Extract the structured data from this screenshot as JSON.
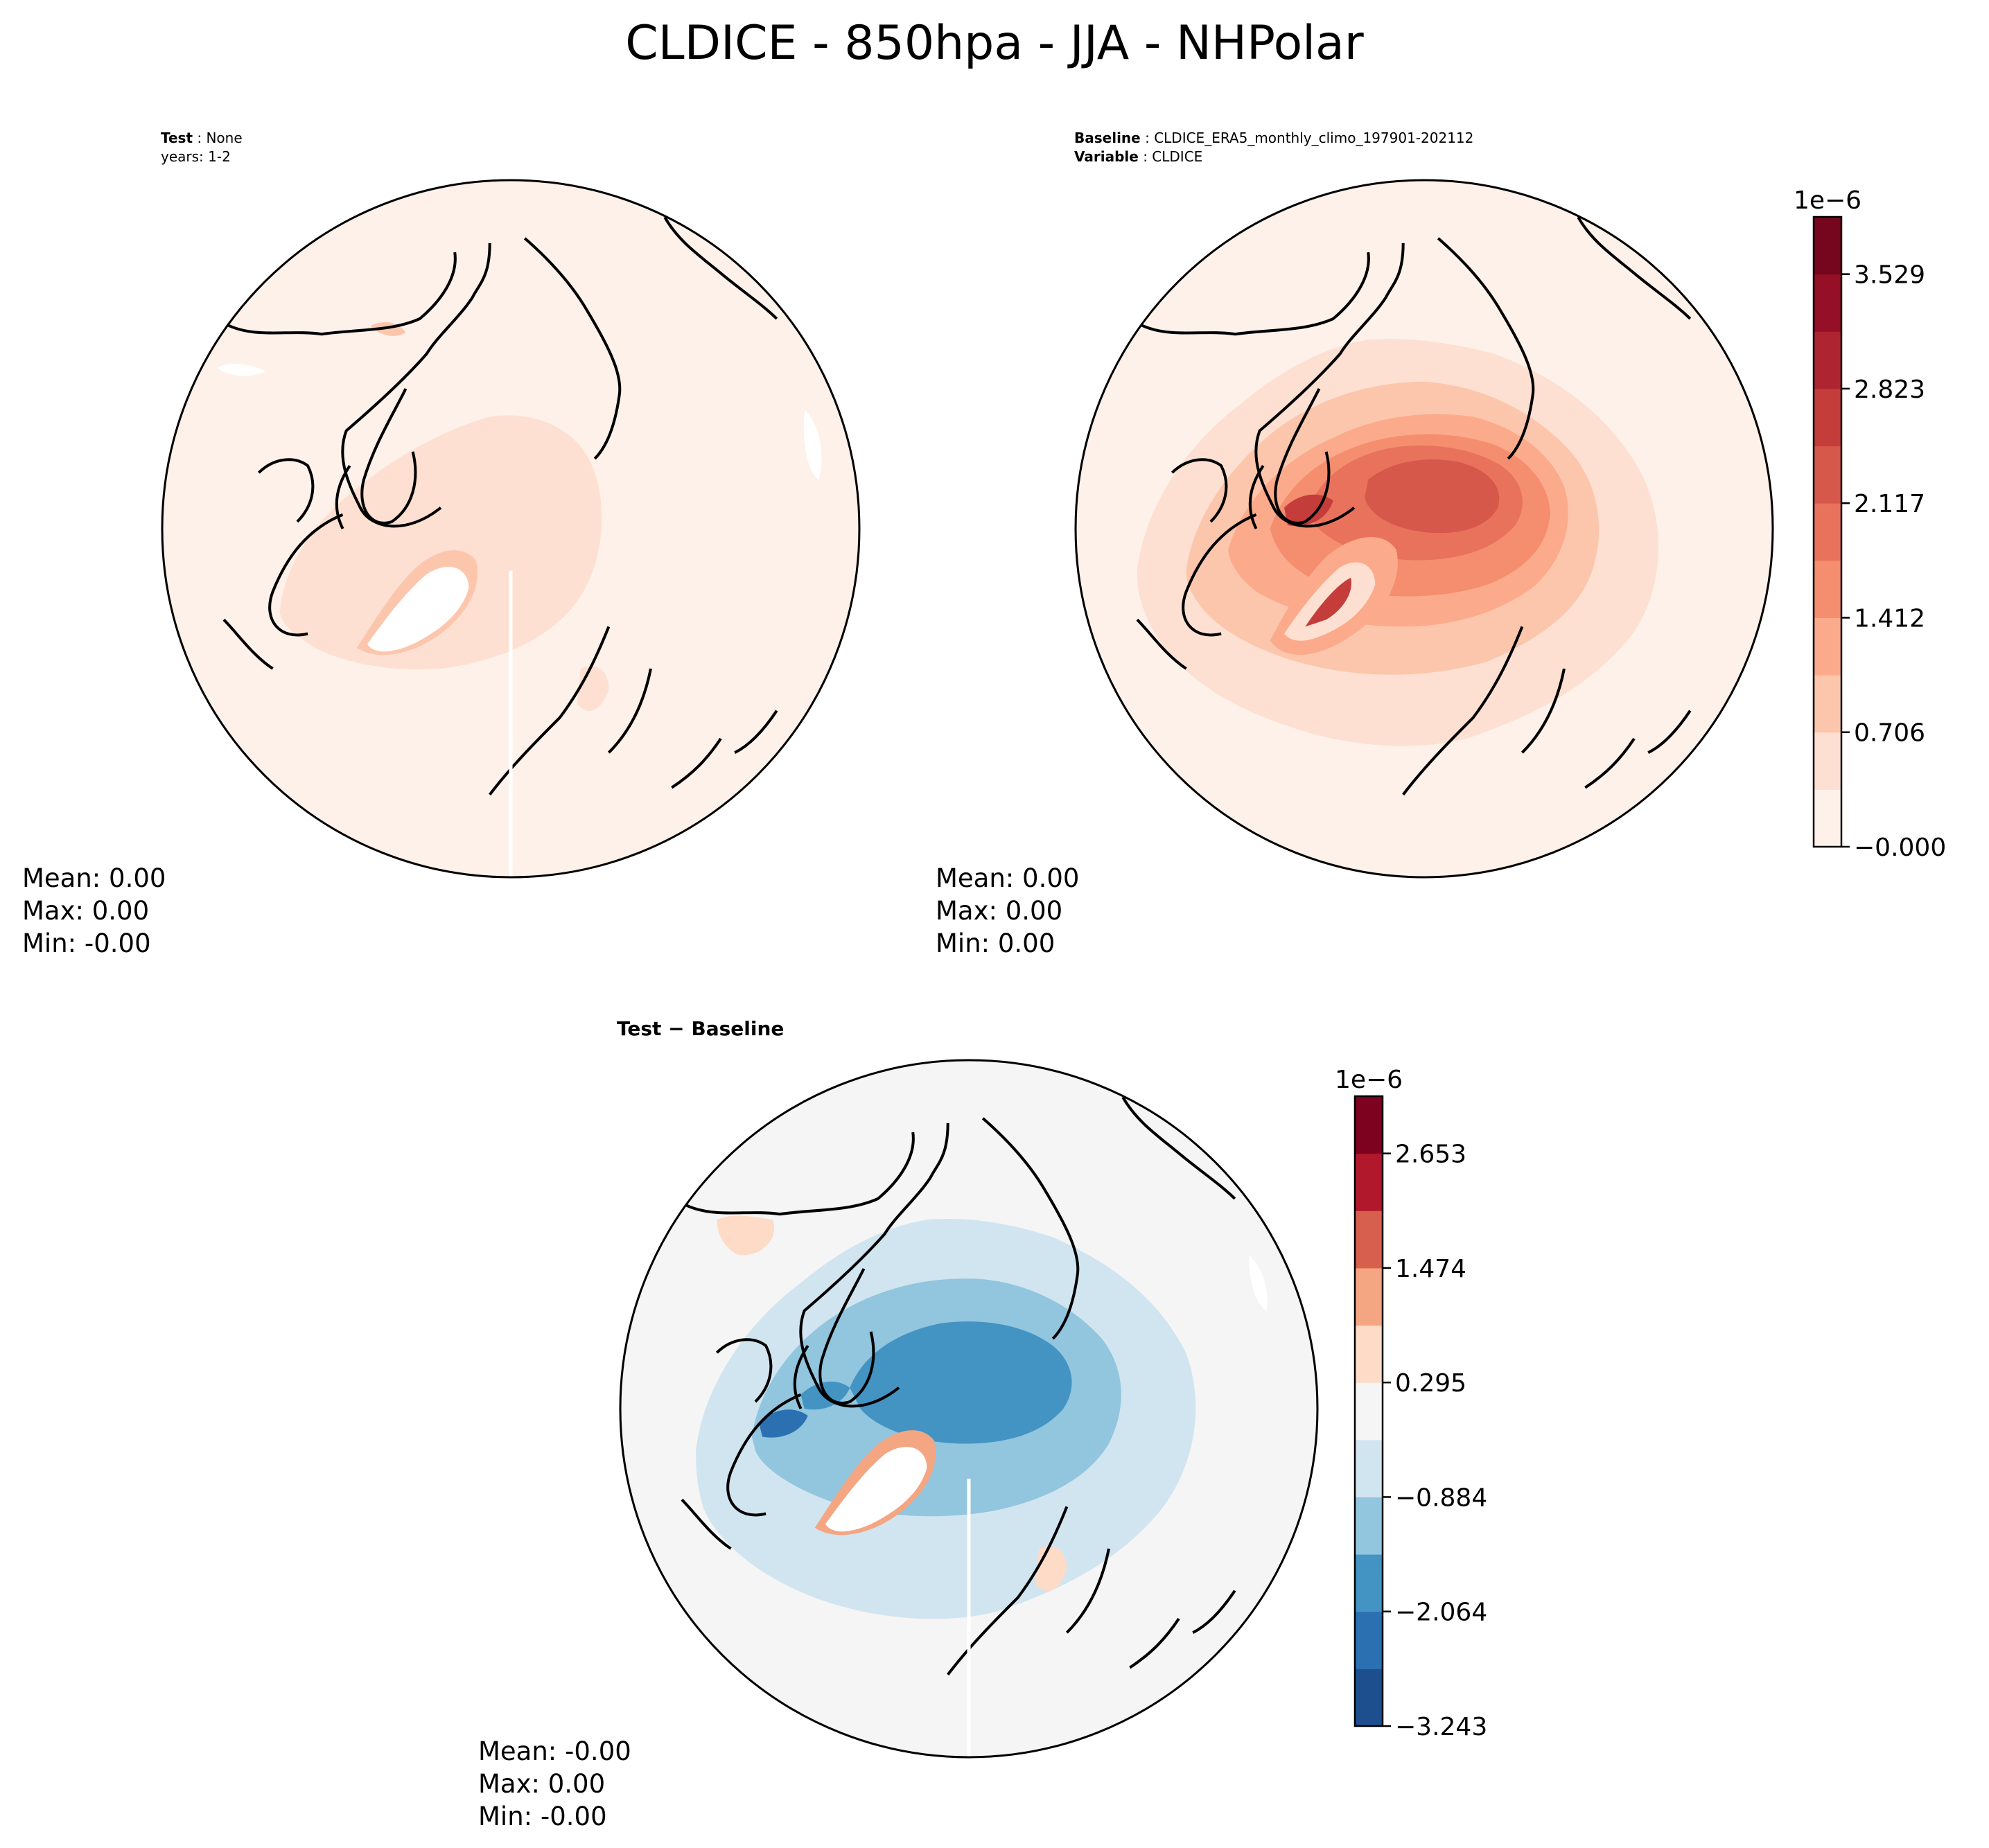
{
  "title": "CLDICE - 850hpa - JJA - NHPolar",
  "colors": {
    "reds": [
      "#fdf1ea",
      "#fde0d1",
      "#fcc6ad",
      "#fbab8b",
      "#f48e6e",
      "#e9725c",
      "#d6584a",
      "#c43d3b",
      "#ae2531",
      "#950f26",
      "#75061d"
    ],
    "rdbu": [
      "#1d4f8f",
      "#2b71b2",
      "#4393c3",
      "#92c5de",
      "#d1e5f0",
      "#f5f5f5",
      "#fddbc7",
      "#f4a582",
      "#d6604d",
      "#b2182b",
      "#7c0220"
    ],
    "white": "#ffffff",
    "coast": "#000000"
  },
  "panels": {
    "test": {
      "label_bold": "Test",
      "label_text": "None",
      "years": "years: 1-2",
      "mean": "Mean:  0.00",
      "max": "Max:  0.00",
      "min": "Min: -0.00"
    },
    "baseline": {
      "label_bold": "Baseline",
      "label_text": "CLDICE_ERA5_monthly_climo_197901-202112",
      "variable_bold": "Variable",
      "variable_text": "CLDICE",
      "mean": "Mean:  0.00",
      "max": "Max:  0.00",
      "min": "Min:  0.00"
    },
    "diff": {
      "title": "Test − Baseline",
      "mean": "Mean: -0.00",
      "max": "Max:  0.00",
      "min": "Min: -0.00"
    }
  },
  "colorbars": {
    "baseline": {
      "scale": "1e−6",
      "ticks": [
        "3.529",
        "2.823",
        "2.117",
        "1.412",
        "0.706",
        "−0.000"
      ]
    },
    "diff": {
      "scale": "1e−6",
      "ticks": [
        "2.653",
        "1.474",
        "0.295",
        "−0.884",
        "−2.064",
        "−3.243"
      ]
    }
  }
}
